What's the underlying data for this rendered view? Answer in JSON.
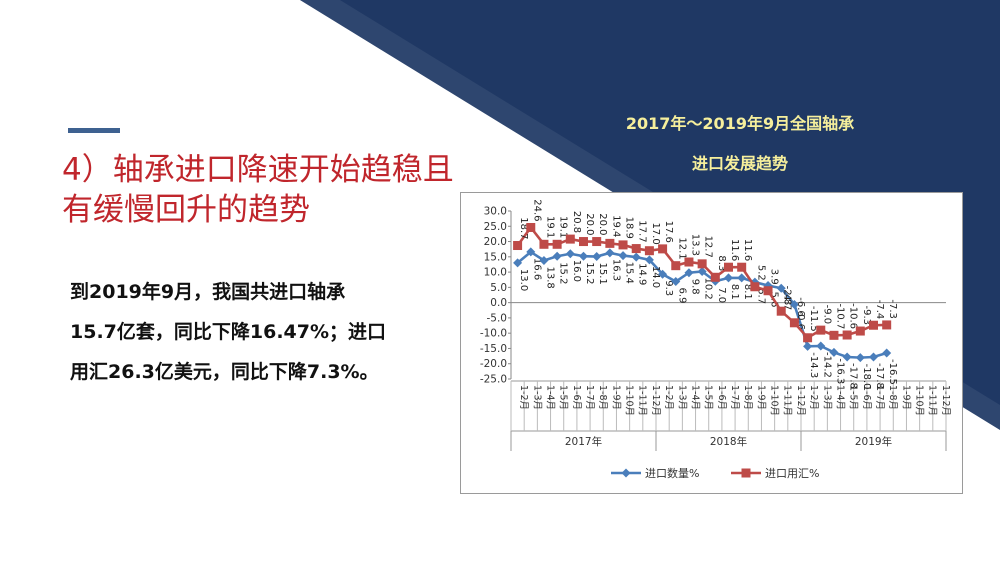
{
  "slide": {
    "heading_line1": "4）轴承进口降速开始趋稳且",
    "heading_line2": "有缓慢回升的趋势",
    "body_line1": "到2019年9月，我国共进口轴承",
    "body_line2": "15.7亿套，同比下降16.47%；进口",
    "body_line3": "用汇26.3亿美元，同比下降7.3%。",
    "colors": {
      "heading": "#c0262c",
      "navy": "#1f3864",
      "title_yellow": "#f6ef9c",
      "accent": "#3e6190"
    }
  },
  "chart_data": {
    "type": "line",
    "title_line1": "2017年～2019年9月全国轴承",
    "title_line2": "进口发展趋势",
    "ylim": [
      -25,
      30
    ],
    "yticks": [
      "30.0",
      "25.0",
      "20.0",
      "15.0",
      "10.0",
      "5.0",
      "0.0",
      "-5.0",
      "-10.0",
      "-15.0",
      "-20.0",
      "-25.0"
    ],
    "categories": [
      "1-2月",
      "1-3月",
      "1-4月",
      "1-5月",
      "1-6月",
      "1-7月",
      "1-8月",
      "1-9月",
      "1-10月",
      "1-11月",
      "1-12月",
      "1-2月",
      "1-3月",
      "1-4月",
      "1-5月",
      "1-6月",
      "1-7月",
      "1-8月",
      "1-9月",
      "1-10月",
      "1-11月",
      "1-12月",
      "1-2月",
      "1-3月",
      "1-4月",
      "1-5月",
      "1-6月",
      "1-7月",
      "1-8月",
      "1-9月",
      "1-10月",
      "1-11月",
      "1-12月"
    ],
    "year_groups": [
      {
        "label": "2017年",
        "start": 0,
        "end": 10
      },
      {
        "label": "2018年",
        "start": 11,
        "end": 21
      },
      {
        "label": "2019年",
        "start": 22,
        "end": 32
      }
    ],
    "series": [
      {
        "name": "进口数量%",
        "color": "#4a7ebb",
        "marker": "diamond",
        "values": [
          13.0,
          16.6,
          13.8,
          15.2,
          16.0,
          15.2,
          15.1,
          16.3,
          15.4,
          14.9,
          14.0,
          9.3,
          6.9,
          9.8,
          10.2,
          7.0,
          8.1,
          8.1,
          6.7,
          5.6,
          4.7,
          -0.6,
          -14.3,
          -14.2,
          -16.3,
          -17.8,
          -18.0,
          -17.8,
          -16.5,
          null,
          null,
          null,
          null
        ]
      },
      {
        "name": "进口用汇%",
        "color": "#be4b48",
        "marker": "square",
        "values": [
          18.7,
          24.6,
          19.1,
          19.1,
          20.8,
          20.0,
          20.0,
          19.4,
          18.9,
          17.7,
          17.0,
          17.6,
          12.1,
          13.3,
          12.7,
          8.3,
          11.6,
          11.6,
          5.2,
          3.9,
          -2.8,
          -6.6,
          -11.5,
          -9.0,
          -10.7,
          -10.6,
          -9.3,
          -7.4,
          -7.3,
          null,
          null,
          null,
          null
        ]
      }
    ],
    "legend_position": "bottom",
    "grid": false
  }
}
